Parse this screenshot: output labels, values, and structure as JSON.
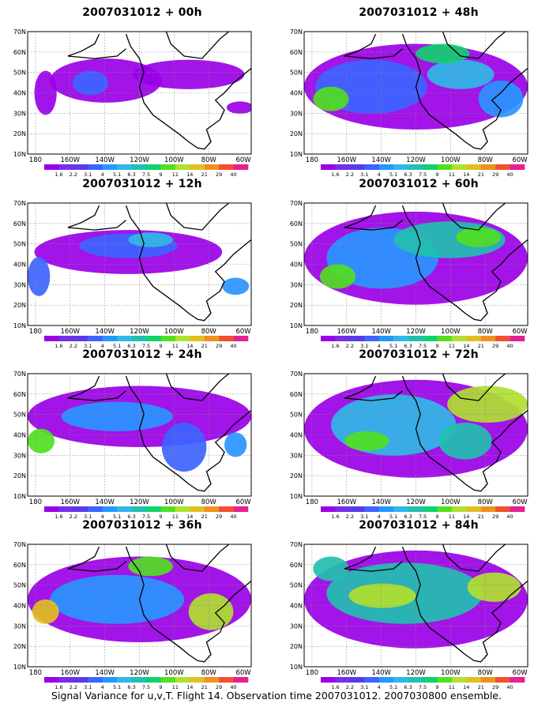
{
  "caption": "Signal Variance for u,v,T. Flight 14. Observation time 2007031012. 2007030800 ensemble.",
  "lat_labels": [
    "70N",
    "60N",
    "50N",
    "40N",
    "30N",
    "20N",
    "10N"
  ],
  "lon_labels": [
    "180",
    "160W",
    "140W",
    "120W",
    "100W",
    "80W",
    "60W"
  ],
  "colorbar": {
    "levels": [
      "1.6",
      "2.2",
      "3.1",
      "4",
      "5.1",
      "6.3",
      "7.5",
      "9",
      "11",
      "14",
      "21",
      "29",
      "40"
    ],
    "colors": [
      "#9a00e6",
      "#7a2de6",
      "#5a3ce6",
      "#3c64ff",
      "#2896ff",
      "#30b8e6",
      "#20c0b0",
      "#10d070",
      "#50e020",
      "#b0e030",
      "#e0c020",
      "#f09020",
      "#f05030",
      "#e62090"
    ]
  },
  "panels": [
    {
      "title": "2007031012 + 00h"
    },
    {
      "title": "2007031012 + 48h"
    },
    {
      "title": "2007031012 + 12h"
    },
    {
      "title": "2007031012 + 60h"
    },
    {
      "title": "2007031012 + 24h"
    },
    {
      "title": "2007031012 + 72h"
    },
    {
      "title": "2007031012 + 36h"
    },
    {
      "title": "2007031012 + 84h"
    }
  ]
}
